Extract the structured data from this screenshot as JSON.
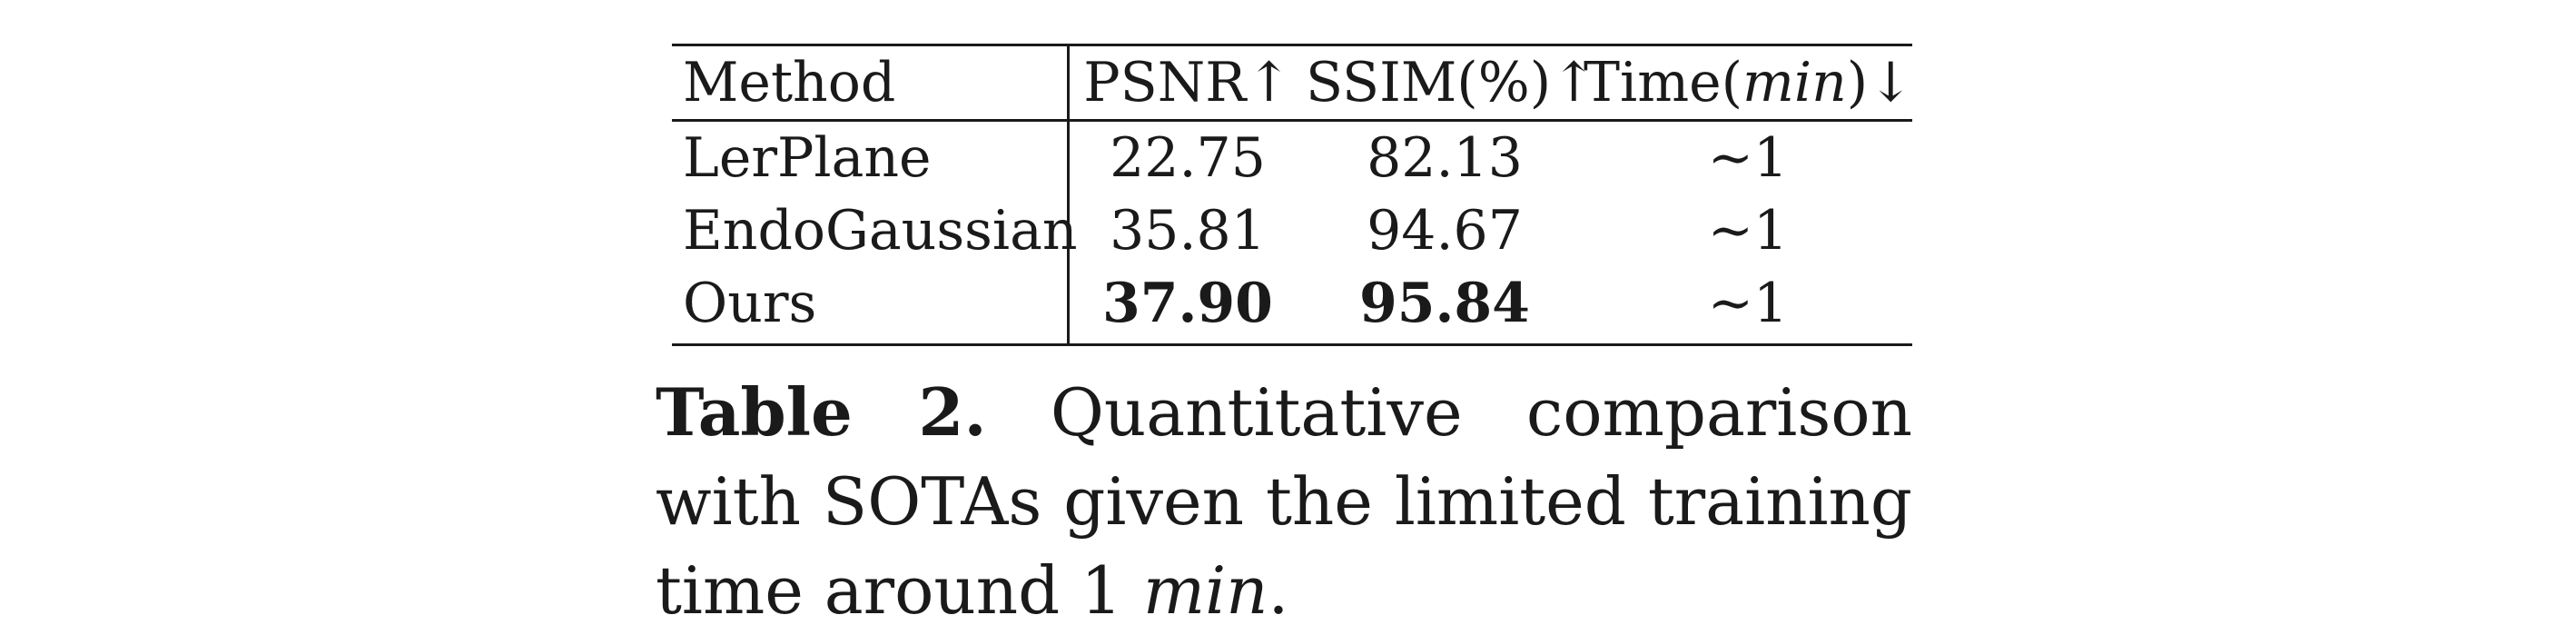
{
  "table": {
    "headers": {
      "method": "Method",
      "psnr": "PSNR↑",
      "ssim": "SSIM(%)↑",
      "time_prefix": "Time(",
      "time_unit": "min",
      "time_suffix": ")↓"
    },
    "rows": [
      {
        "method": "LerPlane",
        "psnr": "22.75",
        "ssim": "82.13",
        "time": "∼1"
      },
      {
        "method": "EndoGaussian",
        "psnr": "35.81",
        "ssim": "94.67",
        "time": "∼1"
      },
      {
        "method": "Ours",
        "psnr": "37.90",
        "ssim": "95.84",
        "time": "∼1"
      }
    ]
  },
  "caption": {
    "label": "Table 2.",
    "text": "Quantitative comparison with SOTAs given the limited training time around 1",
    "unit": "min",
    "end": "."
  }
}
